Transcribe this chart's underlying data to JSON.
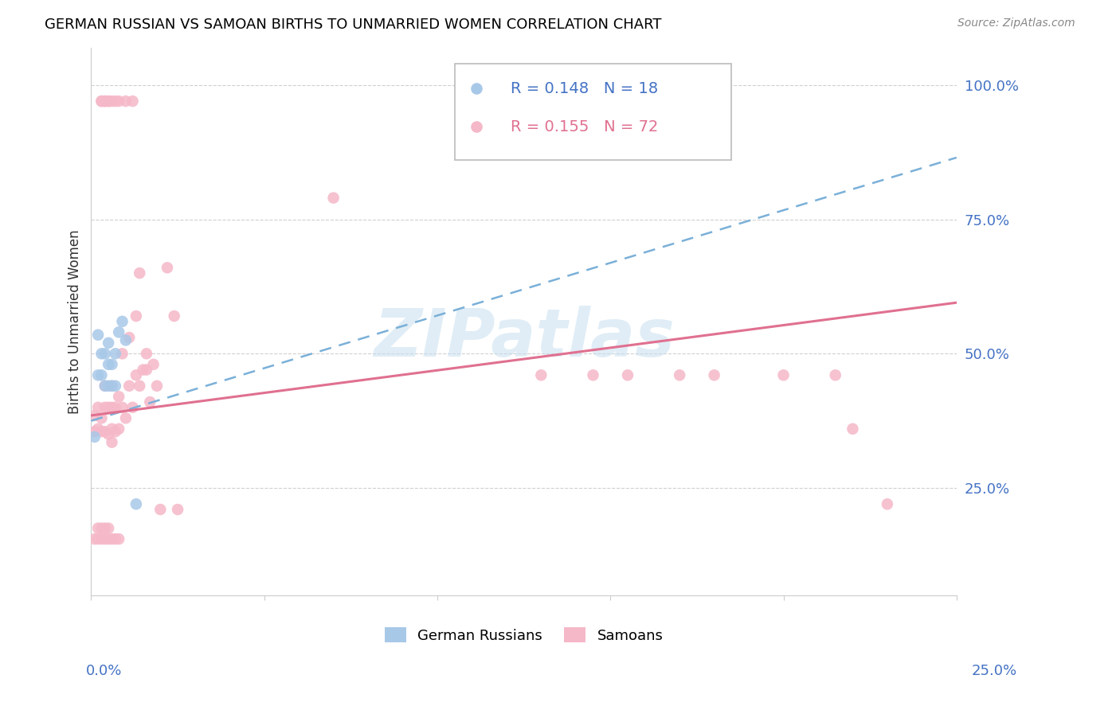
{
  "title": "GERMAN RUSSIAN VS SAMOAN BIRTHS TO UNMARRIED WOMEN CORRELATION CHART",
  "source": "Source: ZipAtlas.com",
  "ylabel": "Births to Unmarried Women",
  "ytick_labels": [
    "100.0%",
    "75.0%",
    "50.0%",
    "25.0%"
  ],
  "ytick_values": [
    1.0,
    0.75,
    0.5,
    0.25
  ],
  "xlim": [
    0.0,
    0.25
  ],
  "ylim": [
    0.05,
    1.07
  ],
  "german_russian_color": "#a8c8e8",
  "samoan_color": "#f5b8c8",
  "trend_blue_color": "#7ab0d8",
  "trend_pink_color": "#e07090",
  "watermark": "ZIPatlas",
  "gr_trend_x": [
    0.0,
    0.25
  ],
  "gr_trend_y": [
    0.375,
    0.865
  ],
  "sa_trend_x": [
    0.0,
    0.25
  ],
  "sa_trend_y": [
    0.385,
    0.595
  ],
  "gr_x": [
    0.001,
    0.002,
    0.002,
    0.003,
    0.003,
    0.004,
    0.004,
    0.005,
    0.005,
    0.005,
    0.006,
    0.006,
    0.007,
    0.007,
    0.008,
    0.009,
    0.01,
    0.013
  ],
  "gr_y": [
    0.345,
    0.535,
    0.46,
    0.46,
    0.5,
    0.44,
    0.5,
    0.44,
    0.48,
    0.52,
    0.44,
    0.48,
    0.44,
    0.5,
    0.54,
    0.56,
    0.525,
    0.22
  ],
  "sa_x": [
    0.001,
    0.001,
    0.002,
    0.002,
    0.003,
    0.003,
    0.003,
    0.003,
    0.004,
    0.004,
    0.004,
    0.004,
    0.004,
    0.005,
    0.005,
    0.005,
    0.005,
    0.006,
    0.006,
    0.006,
    0.006,
    0.006,
    0.007,
    0.007,
    0.007,
    0.008,
    0.008,
    0.008,
    0.009,
    0.009,
    0.01,
    0.01,
    0.011,
    0.011,
    0.012,
    0.012,
    0.013,
    0.013,
    0.014,
    0.014,
    0.015,
    0.016,
    0.016,
    0.017,
    0.018,
    0.019,
    0.02,
    0.022,
    0.024,
    0.025,
    0.001,
    0.002,
    0.002,
    0.003,
    0.003,
    0.004,
    0.004,
    0.005,
    0.005,
    0.006,
    0.007,
    0.008,
    0.07,
    0.13,
    0.145,
    0.155,
    0.17,
    0.18,
    0.2,
    0.215,
    0.22,
    0.23
  ],
  "sa_y": [
    0.355,
    0.385,
    0.36,
    0.4,
    0.355,
    0.38,
    0.97,
    0.97,
    0.355,
    0.4,
    0.44,
    0.97,
    0.97,
    0.35,
    0.4,
    0.97,
    0.97,
    0.335,
    0.36,
    0.4,
    0.44,
    0.97,
    0.355,
    0.4,
    0.97,
    0.36,
    0.42,
    0.97,
    0.4,
    0.5,
    0.38,
    0.97,
    0.44,
    0.53,
    0.4,
    0.97,
    0.46,
    0.57,
    0.44,
    0.65,
    0.47,
    0.47,
    0.5,
    0.41,
    0.48,
    0.44,
    0.21,
    0.66,
    0.57,
    0.21,
    0.155,
    0.155,
    0.175,
    0.155,
    0.175,
    0.155,
    0.175,
    0.155,
    0.175,
    0.155,
    0.155,
    0.155,
    0.79,
    0.46,
    0.46,
    0.46,
    0.46,
    0.46,
    0.46,
    0.46,
    0.36,
    0.22
  ]
}
